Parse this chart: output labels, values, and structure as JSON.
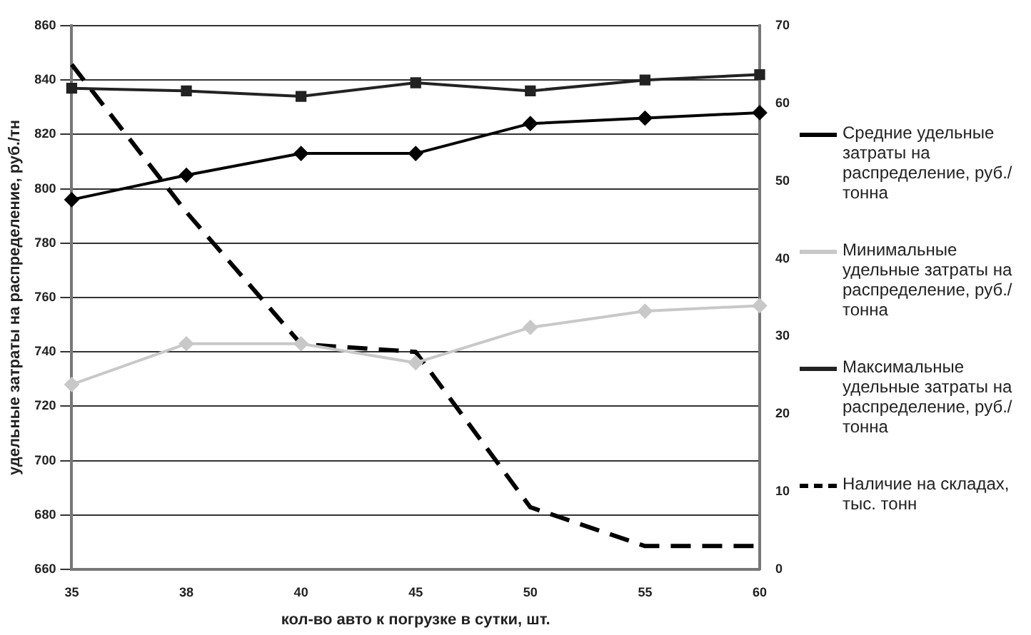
{
  "chart_data": {
    "type": "line",
    "xlabel": "кол-во авто к погрузке в сутки, шт.",
    "ylabel": "удельные затраты на распределение, руб./тн",
    "categories": [
      "35",
      "38",
      "40",
      "45",
      "50",
      "55",
      "60"
    ],
    "series": [
      {
        "name": "Средние удельные затраты на распределение, руб./тонна",
        "color": "#000000",
        "marker": "diamond",
        "values": [
          796,
          805,
          813,
          813,
          824,
          826,
          828
        ]
      },
      {
        "name": "Минимальные удельные затраты на распределение, руб./тонна",
        "color": "#c8c8c8",
        "marker": "diamond",
        "values": [
          728,
          743,
          743,
          736,
          749,
          755,
          757
        ]
      },
      {
        "name": "Максимальные удельные затраты на распределение, руб./тонна",
        "color": "#222222",
        "marker": "square",
        "values": [
          837,
          836,
          834,
          839,
          836,
          840,
          842
        ]
      },
      {
        "name": "Наличие на складах, тыс. тонн",
        "color": "#000000",
        "marker": "none",
        "line_style": "dashed",
        "axis": "y2",
        "values": [
          65,
          46,
          29,
          28,
          8,
          3,
          3
        ]
      }
    ],
    "ylim": [
      660,
      860
    ],
    "yticks": [
      660,
      680,
      700,
      720,
      740,
      760,
      780,
      800,
      820,
      840,
      860
    ],
    "y2lim": [
      0,
      70
    ],
    "y2ticks": [
      0,
      10,
      20,
      30,
      40,
      50,
      60,
      70
    ],
    "grid": "y",
    "legend": "right"
  }
}
